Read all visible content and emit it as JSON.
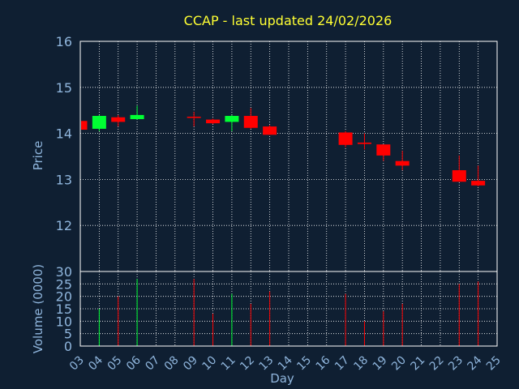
{
  "colors": {
    "background": "#0f1f32",
    "title": "#ffff33",
    "axis_text": "#8fb5dc",
    "frame": "#ffffff",
    "grid": "#ffffff",
    "up": "#00ff33",
    "down": "#ff0000"
  },
  "chart_data": {
    "type": "candlestick",
    "title": "CCAP - last updated 24/02/2026",
    "xlabel": "Day",
    "price_panel": {
      "ylabel": "Price",
      "ylim": [
        11,
        16
      ],
      "yticks": [
        "12",
        "13",
        "14",
        "15",
        "16"
      ],
      "grid": true
    },
    "volume_panel": {
      "ylabel": "Volume (0000)",
      "ylim": [
        0,
        30
      ],
      "yticks": [
        "0",
        "5",
        "10",
        "15",
        "20",
        "25",
        "30"
      ],
      "grid": true
    },
    "x_ticks": [
      "03",
      "04",
      "05",
      "06",
      "07",
      "08",
      "09",
      "10",
      "11",
      "12",
      "13",
      "14",
      "15",
      "16",
      "17",
      "18",
      "19",
      "20",
      "21",
      "22",
      "23",
      "24",
      "25"
    ],
    "candles": [
      {
        "day": 3.0,
        "open": 14.27,
        "high": 14.27,
        "low": 14.08,
        "close": 14.08,
        "volume": 0
      },
      {
        "day": 4.0,
        "open": 14.1,
        "high": 14.4,
        "low": 14.05,
        "close": 14.38,
        "volume": 15
      },
      {
        "day": 5.0,
        "open": 14.35,
        "high": 14.4,
        "low": 14.15,
        "close": 14.25,
        "volume": 20
      },
      {
        "day": 6.0,
        "open": 14.31,
        "high": 14.6,
        "low": 14.3,
        "close": 14.4,
        "volume": 27
      },
      {
        "day": 9.0,
        "open": 14.35,
        "high": 14.47,
        "low": 14.15,
        "close": 14.33,
        "volume": 27
      },
      {
        "day": 10.0,
        "open": 14.3,
        "high": 14.32,
        "low": 14.2,
        "close": 14.22,
        "volume": 13
      },
      {
        "day": 11.0,
        "open": 14.25,
        "high": 14.4,
        "low": 14.05,
        "close": 14.38,
        "volume": 21
      },
      {
        "day": 12.0,
        "open": 14.38,
        "high": 14.55,
        "low": 14.1,
        "close": 14.12,
        "volume": 17
      },
      {
        "day": 13.0,
        "open": 14.15,
        "high": 14.18,
        "low": 13.97,
        "close": 13.97,
        "volume": 22
      },
      {
        "day": 17.0,
        "open": 14.02,
        "high": 14.05,
        "low": 13.7,
        "close": 13.75,
        "volume": 21
      },
      {
        "day": 18.0,
        "open": 13.8,
        "high": 14.0,
        "low": 13.65,
        "close": 13.77,
        "volume": 10
      },
      {
        "day": 19.0,
        "open": 13.76,
        "high": 13.76,
        "low": 13.4,
        "close": 13.52,
        "volume": 14
      },
      {
        "day": 20.0,
        "open": 13.4,
        "high": 13.62,
        "low": 13.2,
        "close": 13.3,
        "volume": 17
      },
      {
        "day": 23.0,
        "open": 13.2,
        "high": 13.52,
        "low": 12.95,
        "close": 12.95,
        "volume": 25
      },
      {
        "day": 24.0,
        "open": 12.97,
        "high": 13.3,
        "low": 12.85,
        "close": 12.87,
        "volume": 26
      }
    ]
  }
}
